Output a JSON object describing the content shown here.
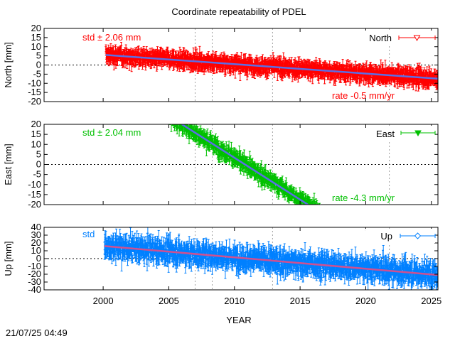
{
  "chart_data": {
    "type": "scatter",
    "title": "Coordinate repeatability of PDEL",
    "xlabel": "YEAR",
    "xlim": [
      1995.5,
      2025.5
    ],
    "xticks": [
      2000,
      2005,
      2010,
      2015,
      2020,
      2025
    ],
    "vlines": [
      2007.0,
      2008.3,
      2012.9,
      2021.8
    ],
    "timestamp": "21/07/25 04:49",
    "panels": [
      {
        "name": "North",
        "ylabel": "North [mm]",
        "ylim": [
          -20,
          20
        ],
        "yticks": [
          -20,
          -15,
          -10,
          -5,
          0,
          5,
          10,
          15,
          20
        ],
        "color": "#ff0000",
        "trend_color": "#5b6ee6",
        "legend": "North",
        "marker": "triangle-open",
        "std_label": "std ± 2.06 mm",
        "rate_label": "rate -0.5 mm/yr",
        "data_start": 2000.2,
        "data_end": 2025.5,
        "trend": [
          [
            2000.2,
            5.5
          ],
          [
            2025.5,
            -7.5
          ]
        ],
        "scatter_sd": 2.06,
        "error_bar": 2.2
      },
      {
        "name": "East",
        "ylabel": "East [mm]",
        "ylim": [
          -20,
          20
        ],
        "yticks": [
          -20,
          -15,
          -10,
          -5,
          0,
          5,
          10,
          15,
          20
        ],
        "color": "#00c000",
        "trend_color": "#5b6ee6",
        "legend": "East",
        "marker": "triangle-filled",
        "std_label": "std ± 2.04 mm",
        "rate_label": "rate -4.3 mm/yr",
        "data_start": 2005.0,
        "data_end": 2016.6,
        "trend": [
          [
            2006.0,
            20.0
          ],
          [
            2015.6,
            -20.0
          ]
        ],
        "scatter_sd": 2.04,
        "error_bar": 1.8
      },
      {
        "name": "Up",
        "ylabel": "Up [mm]",
        "ylim": [
          -40,
          40
        ],
        "yticks": [
          -40,
          -30,
          -20,
          -10,
          0,
          10,
          20,
          30,
          40
        ],
        "color": "#0080ff",
        "trend_color": "#d05090",
        "legend": "Up",
        "marker": "diamond-open",
        "std_label": "std",
        "rate_label": "",
        "data_start": 2000.1,
        "data_end": 2025.5,
        "trend": [
          [
            2000.1,
            16.0
          ],
          [
            2025.5,
            -21.0
          ]
        ],
        "scatter_sd": 7.5,
        "error_bar": 6.0
      }
    ]
  }
}
